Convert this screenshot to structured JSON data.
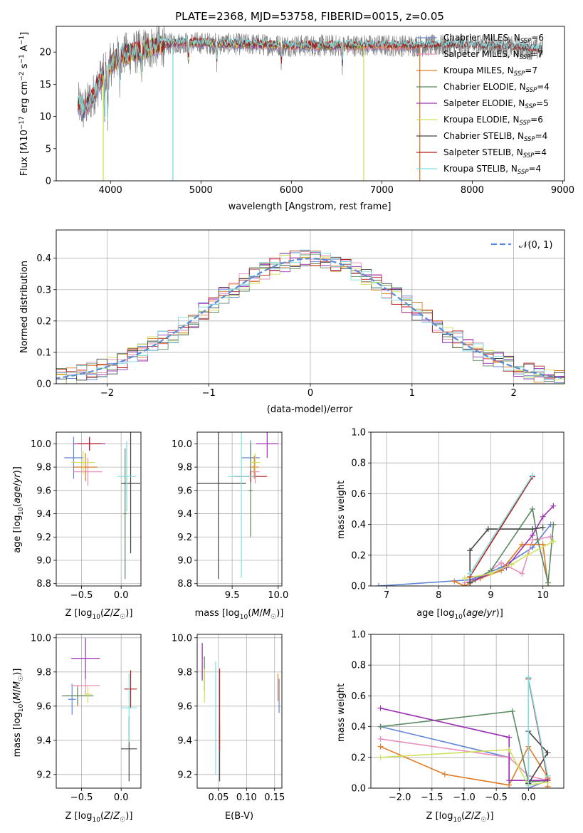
{
  "chart_data": [
    {
      "id": "spectrum",
      "type": "line",
      "title": "PLATE=2368, MJD=53758, FIBERID=0015, z=0.05",
      "xlabel": "wavelength [Angstrom, rest frame]",
      "ylabel": "Flux [f_λ10^-17 erg cm^-2 s^-1 A^-1]",
      "xlim": [
        3400,
        9020
      ],
      "ylim": [
        0,
        24
      ],
      "xticks": [
        4000,
        5000,
        6000,
        7000,
        8000,
        9000
      ],
      "yticks": [
        0,
        5,
        10,
        15,
        20
      ],
      "grid": false,
      "legend_position": "upper right",
      "data_spectrum": {
        "color": "#808080",
        "x_range": [
          3640,
          8780
        ],
        "continuum_knots": [
          [
            3640,
            12
          ],
          [
            3700,
            11
          ],
          [
            3800,
            13
          ],
          [
            3900,
            16
          ],
          [
            4000,
            18
          ],
          [
            4100,
            19.5
          ],
          [
            4300,
            20
          ],
          [
            4500,
            21
          ],
          [
            4800,
            21.5
          ],
          [
            5200,
            21.3
          ],
          [
            5600,
            21.2
          ],
          [
            6000,
            21
          ],
          [
            6500,
            21
          ],
          [
            7000,
            21
          ],
          [
            7500,
            21
          ],
          [
            8000,
            21
          ],
          [
            8500,
            20.7
          ],
          [
            8780,
            20.3
          ]
        ]
      },
      "series": [
        {
          "name": "Chabrier MILES",
          "nssp": 6,
          "color": "#6385d6",
          "x_range": [
            3640,
            7420
          ]
        },
        {
          "name": "Salpeter MILES",
          "nssp": 7,
          "color": "#e88fbe",
          "x_range": [
            3640,
            7420
          ]
        },
        {
          "name": "Kroupa MILES",
          "nssp": 7,
          "color": "#e07b25",
          "x_range": [
            3640,
            7420
          ]
        },
        {
          "name": "Chabrier ELODIE",
          "nssp": 4,
          "color": "#5b8a62",
          "x_range": [
            3900,
            6800
          ]
        },
        {
          "name": "Salpeter ELODIE",
          "nssp": 5,
          "color": "#9b30b5",
          "x_range": [
            3900,
            6800
          ]
        },
        {
          "name": "Kroupa ELODIE",
          "nssp": 6,
          "color": "#cfe05a",
          "x_range": [
            3900,
            6800
          ]
        },
        {
          "name": "Chabrier STELIB",
          "nssp": 4,
          "color": "#444444",
          "x_range": [
            3640,
            8780
          ]
        },
        {
          "name": "Salpeter STELIB",
          "nssp": 4,
          "color": "#b81c1c",
          "x_range": [
            3640,
            8780
          ]
        },
        {
          "name": "Kroupa STELIB",
          "nssp": 4,
          "color": "#7fdde0",
          "x_range": [
            3640,
            8780
          ]
        }
      ],
      "drop_lines": [
        {
          "x": 3920,
          "color": "#cfe05a"
        },
        {
          "x": 4690,
          "color": "#7fdde0"
        },
        {
          "x": 6800,
          "color": "#cfe05a"
        },
        {
          "x": 7420,
          "color": "#e07b25"
        }
      ]
    },
    {
      "id": "residuals",
      "type": "histogram",
      "xlabel": "(data-model)/error",
      "ylabel": "Normed distribution",
      "xlim": [
        -2.5,
        2.5
      ],
      "ylim": [
        0,
        0.49
      ],
      "xticks": [
        -2,
        -1,
        0,
        1,
        2
      ],
      "yticks": [
        0.0,
        0.1,
        0.2,
        0.3,
        0.4
      ],
      "grid": true,
      "bin_width": 0.1,
      "legend": {
        "label": "𝒩(0, 1)",
        "position": "upper right"
      },
      "normal_curve": {
        "color": "#5b8ad6",
        "dashed": true
      }
    },
    {
      "id": "age_vs_Z",
      "type": "errorbar",
      "xlabel": "Z [log₁₀(Z/Z☉)]",
      "ylabel": "age [log₁₀(age/yr)]",
      "xlim": [
        -0.82,
        0.25
      ],
      "ylim": [
        8.78,
        10.1
      ],
      "xticks": [
        -0.5,
        0.0
      ],
      "yticks": [
        8.8,
        9.0,
        9.2,
        9.4,
        9.6,
        9.8,
        10.0
      ],
      "grid": true,
      "points": [
        {
          "color": "#6385d6",
          "x": -0.6,
          "xerr": 0.12,
          "y": 9.88,
          "yerr": 0.18
        },
        {
          "color": "#e88fbe",
          "x": -0.42,
          "xerr": 0.18,
          "y": 9.76,
          "yerr": 0.12
        },
        {
          "color": "#e07b25",
          "x": -0.45,
          "xerr": 0.15,
          "y": 9.8,
          "yerr": 0.12
        },
        {
          "color": "#5b8a62",
          "x": 0.05,
          "xerr": 0.02,
          "y": 9.4,
          "yerr": 0.56
        },
        {
          "color": "#9b30b5",
          "x": -0.4,
          "xerr": 0.2,
          "y": 10.0,
          "yerr": 0.05
        },
        {
          "color": "#cfe05a",
          "x": -0.48,
          "xerr": 0.15,
          "y": 9.84,
          "yerr": 0.1
        },
        {
          "color": "#444444",
          "x": 0.12,
          "xerr": 0.12,
          "y": 9.66,
          "yerr": 0.6
        },
        {
          "color": "#b81c1c",
          "x": -0.4,
          "xerr": 0.15,
          "y": 10.0,
          "yerr": 0.06
        },
        {
          "color": "#7fdde0",
          "x": 0.07,
          "xerr": 0.12,
          "y": 9.72,
          "yerr": 0.3
        }
      ]
    },
    {
      "id": "age_vs_mass",
      "type": "errorbar",
      "xlabel": "mass [log₁₀(M/M☉)]",
      "ylabel": "",
      "xlim": [
        9.12,
        10.04
      ],
      "ylim": [
        8.78,
        10.1
      ],
      "xticks": [
        9.5,
        10.0
      ],
      "yticks": [
        8.8,
        9.0,
        9.2,
        9.4,
        9.6,
        9.8,
        10.0
      ],
      "grid": true,
      "points": [
        {
          "color": "#6385d6",
          "x": 9.7,
          "xerr": 0.1,
          "y": 9.88,
          "yerr": 0.15
        },
        {
          "color": "#e88fbe",
          "x": 9.75,
          "xerr": 0.05,
          "y": 9.76,
          "yerr": 0.1
        },
        {
          "color": "#e07b25",
          "x": 9.74,
          "xerr": 0.05,
          "y": 9.8,
          "yerr": 0.1
        },
        {
          "color": "#5b8a62",
          "x": 9.7,
          "xerr": 0.02,
          "y": 9.6,
          "yerr": 0.4
        },
        {
          "color": "#9b30b5",
          "x": 9.88,
          "xerr": 0.12,
          "y": 10.0,
          "yerr": 0.12
        },
        {
          "color": "#cfe05a",
          "x": 9.75,
          "xerr": 0.05,
          "y": 9.84,
          "yerr": 0.08
        },
        {
          "color": "#444444",
          "x": 9.35,
          "xerr": 0.3,
          "y": 9.66,
          "yerr": 0.82
        },
        {
          "color": "#b81c1c",
          "x": 9.7,
          "xerr": 0.18,
          "y": 9.72,
          "yerr": 0.05
        },
        {
          "color": "#7fdde0",
          "x": 9.6,
          "xerr": 0.15,
          "y": 9.72,
          "yerr": 0.87
        }
      ]
    },
    {
      "id": "weight_vs_age",
      "type": "line",
      "xlabel": "age [log₁₀(age/yr)]",
      "ylabel": "mass weight",
      "xlim": [
        6.7,
        10.4
      ],
      "ylim": [
        0,
        1.0
      ],
      "xticks": [
        7,
        8,
        9,
        10
      ],
      "yticks": [
        0.0,
        0.2,
        0.4,
        0.6,
        0.8,
        1.0
      ],
      "grid": true,
      "series": [
        {
          "color": "#6385d6",
          "x": [
            6.85,
            8.6,
            9.2,
            9.8,
            10.15
          ],
          "y": [
            0.0,
            0.04,
            0.12,
            0.25,
            0.4
          ]
        },
        {
          "color": "#e88fbe",
          "x": [
            8.5,
            8.8,
            9.2,
            9.6,
            9.8,
            10.15
          ],
          "y": [
            0.02,
            0.05,
            0.15,
            0.08,
            0.3,
            0.32
          ]
        },
        {
          "color": "#e07b25",
          "x": [
            8.3,
            8.5,
            8.8,
            9.2,
            9.6,
            10.0,
            10.1
          ],
          "y": [
            0.03,
            0.0,
            0.05,
            0.1,
            0.27,
            0.27,
            0.0
          ]
        },
        {
          "color": "#5b8a62",
          "x": [
            8.6,
            9.0,
            9.8,
            9.9,
            10.1,
            10.2
          ],
          "y": [
            0.02,
            0.1,
            0.5,
            0.3,
            0.02,
            0.4
          ]
        },
        {
          "color": "#9b30b5",
          "x": [
            8.7,
            9.3,
            9.8,
            10.0,
            10.2
          ],
          "y": [
            0.04,
            0.12,
            0.33,
            0.45,
            0.52
          ]
        },
        {
          "color": "#cfe05a",
          "x": [
            8.5,
            9.0,
            9.4,
            9.7,
            10.2
          ],
          "y": [
            0.05,
            0.08,
            0.14,
            0.2,
            0.29
          ]
        },
        {
          "color": "#444444",
          "x": [
            8.6,
            8.6,
            8.95,
            9.8,
            10.0
          ],
          "y": [
            0.02,
            0.23,
            0.37,
            0.37,
            0.38
          ]
        },
        {
          "color": "#b81c1c",
          "x": [
            8.6,
            9.8
          ],
          "y": [
            0.06,
            0.71
          ]
        },
        {
          "color": "#7fdde0",
          "x": [
            8.6,
            9.8
          ],
          "y": [
            0.08,
            0.72
          ]
        }
      ]
    },
    {
      "id": "mass_vs_Z",
      "type": "errorbar",
      "xlabel": "Z [log₁₀(Z/Z☉)]",
      "ylabel": "mass [log₁₀(M/M☉)]",
      "xlim": [
        -0.82,
        0.25
      ],
      "ylim": [
        9.12,
        10.02
      ],
      "xticks": [
        -0.5,
        0.0
      ],
      "yticks": [
        9.2,
        9.4,
        9.6,
        9.8,
        10.0
      ],
      "grid": true,
      "points": [
        {
          "color": "#6385d6",
          "x": -0.62,
          "xerr": 0.05,
          "y": 9.64,
          "yerr": 0.09
        },
        {
          "color": "#e88fbe",
          "x": -0.45,
          "xerr": 0.18,
          "y": 9.72,
          "yerr": 0.05
        },
        {
          "color": "#e07b25",
          "x": -0.55,
          "xerr": 0.15,
          "y": 9.66,
          "yerr": 0.06
        },
        {
          "color": "#5b8a62",
          "x": -0.55,
          "xerr": 0.2,
          "y": 9.66,
          "yerr": 0.05
        },
        {
          "color": "#9b30b5",
          "x": -0.45,
          "xerr": 0.18,
          "y": 9.88,
          "yerr": 0.12
        },
        {
          "color": "#cfe05a",
          "x": -0.42,
          "xerr": 0.05,
          "y": 9.67,
          "yerr": 0.05
        },
        {
          "color": "#444444",
          "x": 0.1,
          "xerr": 0.1,
          "y": 9.35,
          "yerr": 0.19
        },
        {
          "color": "#b81c1c",
          "x": 0.12,
          "xerr": 0.08,
          "y": 9.7,
          "yerr": 0.11
        },
        {
          "color": "#7fdde0",
          "x": 0.1,
          "xerr": 0.1,
          "y": 9.59,
          "yerr": 0.2
        }
      ]
    },
    {
      "id": "mass_vs_ebv",
      "type": "errorbar",
      "xlabel": "E(B-V)",
      "ylabel": "",
      "xlim": [
        0.012,
        0.163
      ],
      "ylim": [
        9.12,
        10.02
      ],
      "xticks": [
        0.05,
        0.1,
        0.15
      ],
      "yticks": [
        9.2,
        9.4,
        9.6,
        9.8,
        10.0
      ],
      "grid": true,
      "points": [
        {
          "color": "#6385d6",
          "x": 0.158,
          "xerr": 0,
          "y": 9.66,
          "yerr": 0.1
        },
        {
          "color": "#e88fbe",
          "x": 0.021,
          "xerr": 0,
          "y": 9.86,
          "yerr": 0.1
        },
        {
          "color": "#e07b25",
          "x": 0.156,
          "xerr": 0,
          "y": 9.71,
          "yerr": 0.08
        },
        {
          "color": "#5b8a62",
          "x": 0.025,
          "xerr": 0,
          "y": 9.79,
          "yerr": 0.1
        },
        {
          "color": "#9b30b5",
          "x": 0.021,
          "xerr": 0,
          "y": 9.86,
          "yerr": 0.11
        },
        {
          "color": "#cfe05a",
          "x": 0.025,
          "xerr": 0,
          "y": 9.72,
          "yerr": 0.1
        },
        {
          "color": "#444444",
          "x": 0.052,
          "xerr": 0,
          "y": 9.33,
          "yerr": 0.17
        },
        {
          "color": "#b81c1c",
          "x": 0.052,
          "xerr": 0,
          "y": 9.58,
          "yerr": 0.24
        },
        {
          "color": "#7fdde0",
          "x": 0.045,
          "xerr": 0,
          "y": 9.53,
          "yerr": 0.33
        }
      ]
    },
    {
      "id": "weight_vs_Z",
      "type": "line",
      "xlabel": "Z [log₁₀(Z/Z☉)]",
      "ylabel": "mass weight",
      "xlim": [
        -2.45,
        0.55
      ],
      "ylim": [
        0,
        1.0
      ],
      "xticks": [
        -2.0,
        -1.5,
        -1.0,
        -0.5,
        0.0
      ],
      "yticks": [
        0.0,
        0.2,
        0.4,
        0.6,
        0.8,
        1.0
      ],
      "grid": true,
      "series": [
        {
          "color": "#6385d6",
          "x": [
            -2.3,
            -0.3,
            -0.3,
            0.0,
            0.3
          ],
          "y": [
            0.4,
            0.2,
            0.0,
            0.0,
            0.05
          ]
        },
        {
          "color": "#e88fbe",
          "x": [
            -2.3,
            -0.3,
            0.0,
            0.3
          ],
          "y": [
            0.32,
            0.2,
            0.08,
            0.05
          ]
        },
        {
          "color": "#e07b25",
          "x": [
            -2.3,
            -1.3,
            -0.3,
            0.0,
            0.3,
            0.3
          ],
          "y": [
            0.27,
            0.09,
            0.02,
            0.27,
            0.07,
            0.01
          ]
        },
        {
          "color": "#5b8a62",
          "x": [
            -2.3,
            -0.25,
            0.0,
            0.3
          ],
          "y": [
            0.4,
            0.5,
            0.04,
            0.05
          ]
        },
        {
          "color": "#9b30b5",
          "x": [
            -2.3,
            -0.3,
            -0.3,
            0.3
          ],
          "y": [
            0.52,
            0.33,
            0.05,
            0.05
          ]
        },
        {
          "color": "#cfe05a",
          "x": [
            -2.3,
            -0.3,
            0.0,
            0.3
          ],
          "y": [
            0.2,
            0.25,
            0.02,
            0.04
          ]
        },
        {
          "color": "#444444",
          "x": [
            0.0,
            0.0,
            0.3,
            0.0
          ],
          "y": [
            0.03,
            0.37,
            0.23,
            0.03
          ]
        },
        {
          "color": "#b81c1c",
          "x": [
            0.0,
            0.3
          ],
          "y": [
            0.71,
            0.06
          ]
        },
        {
          "color": "#7fdde0",
          "x": [
            0.0,
            0.0,
            0.3
          ],
          "y": [
            0.02,
            0.72,
            0.08
          ]
        }
      ]
    }
  ]
}
